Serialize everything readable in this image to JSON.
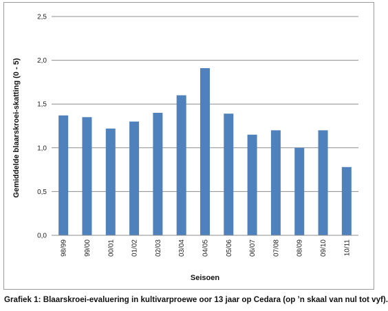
{
  "chart_data": {
    "type": "bar",
    "categories": [
      "98/99",
      "99/00",
      "00/01",
      "01/02",
      "02/03",
      "03/04",
      "04/05",
      "05/06",
      "06/07",
      "07/08",
      "08/09",
      "09/10",
      "10/11"
    ],
    "values": [
      1.37,
      1.35,
      1.22,
      1.3,
      1.4,
      1.6,
      1.91,
      1.39,
      1.15,
      1.2,
      1.0,
      1.2,
      0.78
    ],
    "xlabel": "Seisoen",
    "ylabel": "Gemiddelde blaarskroei-skatting (0 - 5)",
    "ylim": [
      0,
      2.5
    ],
    "yticks": [
      "0,0",
      "0,5",
      "1,0",
      "1,5",
      "2,0",
      "2,5"
    ],
    "grid": true,
    "bar_color": "#4f81bd"
  },
  "caption": "Grafiek 1: Blaarskroei-evaluering in kultivarproewe oor 13 jaar op Cedara (op ’n skaal van nul tot vyf)."
}
